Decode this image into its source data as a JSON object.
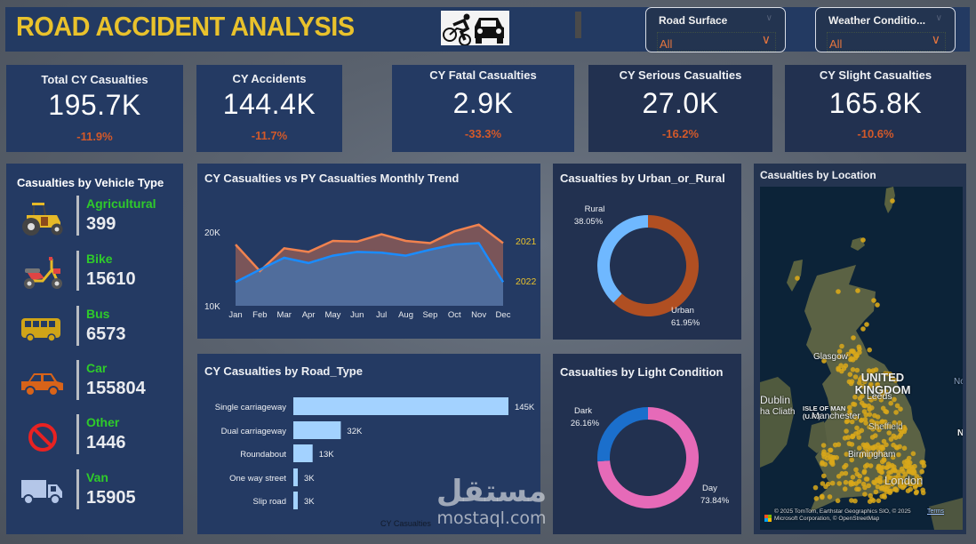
{
  "header": {
    "title": "ROAD ACCIDENT ANALYSIS",
    "logo_icon": "cyclist-car-collision-icon",
    "slicers": [
      {
        "label": "Road Surface",
        "value": "All"
      },
      {
        "label": "Weather Conditio...",
        "value": "All"
      }
    ]
  },
  "kpis": [
    {
      "title": "Total CY Casualties",
      "value": "195.7K",
      "delta": "-11.9%"
    },
    {
      "title": "CY Accidents",
      "value": "144.4K",
      "delta": "-11.7%"
    },
    {
      "title": "CY Fatal Casualties",
      "value": "2.9K",
      "delta": "-33.3%"
    },
    {
      "title": "CY Serious Casualties",
      "value": "27.0K",
      "delta": "-16.2%"
    },
    {
      "title": "CY Slight Casualties",
      "value": "165.8K",
      "delta": "-10.6%"
    }
  ],
  "vehicle": {
    "title": "Casualties by Vehicle Type",
    "items": [
      {
        "label": "Agricultural",
        "value": "399",
        "icon": "tractor-icon"
      },
      {
        "label": "Bike",
        "value": "15610",
        "icon": "motorbike-icon"
      },
      {
        "label": "Bus",
        "value": "6573",
        "icon": "bus-icon"
      },
      {
        "label": "Car",
        "value": "155804",
        "icon": "car-icon"
      },
      {
        "label": "Other",
        "value": "1446",
        "icon": "prohibited-icon"
      },
      {
        "label": "Van",
        "value": "15905",
        "icon": "van-icon"
      }
    ]
  },
  "colors": {
    "py_line": "#f0824f",
    "py_fill": "#7a5559",
    "cy_line": "#1a8cff",
    "cy_fill": "#506d9c",
    "urban": "#b04f22",
    "rural": "#6fb8ff",
    "day": "#e66ab8",
    "dark": "#1b6fcc",
    "bar": "#a3d2ff",
    "delta": "#d2592a",
    "title_yellow": "#e9c22c",
    "vehicle_label": "#2fcb2a"
  },
  "chart_data": [
    {
      "type": "area",
      "title": "CY Casualties vs PY Casualties Monthly Trend",
      "categories": [
        "Jan",
        "Feb",
        "Mar",
        "Apr",
        "May",
        "Jun",
        "Jul",
        "Aug",
        "Sep",
        "Oct",
        "Nov",
        "Dec"
      ],
      "series": [
        {
          "name": "2021",
          "values": [
            18300,
            14700,
            17800,
            17300,
            18800,
            18700,
            19700,
            18800,
            18500,
            20100,
            21000,
            18500
          ]
        },
        {
          "name": "2022",
          "values": [
            13200,
            14900,
            16500,
            15800,
            16800,
            17300,
            17200,
            16800,
            17600,
            18300,
            18500,
            13200
          ]
        }
      ],
      "yticks": [
        "10K",
        "20K"
      ],
      "ylim": [
        10000,
        20000
      ],
      "xlabel": "",
      "ylabel": "",
      "legend": "right-end-labels"
    },
    {
      "type": "bar",
      "orientation": "horizontal",
      "title": "CY Casualties by Road_Type",
      "categories": [
        "Single carriageway",
        "Dual carriageway",
        "Roundabout",
        "One way street",
        "Slip road"
      ],
      "values": [
        145000,
        32000,
        13000,
        3000,
        3000
      ],
      "data_labels": [
        "145K",
        "32K",
        "13K",
        "3K",
        "3K"
      ],
      "xlabel": "CY Casualties",
      "ylabel": ""
    },
    {
      "type": "pie",
      "donut": true,
      "title": "Casualties by Urban_or_Rural",
      "labels": [
        "Urban",
        "Rural"
      ],
      "values": [
        61.95,
        38.05
      ],
      "data_labels": [
        "61.95%",
        "38.05%"
      ]
    },
    {
      "type": "pie",
      "donut": true,
      "title": "Casualties by Light Condition",
      "labels": [
        "Day",
        "Dark"
      ],
      "values": [
        73.84,
        26.16
      ],
      "data_labels": [
        "73.84%",
        "26.16%"
      ]
    }
  ],
  "location": {
    "title": "Casualties by Location",
    "labels": {
      "glasgow": "Glasgow",
      "uk": "UNITED KINGDOM",
      "isle_of_man": "ISLE OF MAN (U.K.)",
      "dublin": "Dublin",
      "baile": "ha Cliath",
      "manchester": "Manchester",
      "leeds": "Leeds",
      "sheffield": "Sheffield",
      "birmingham": "Birmingham",
      "london": "London",
      "no": "No",
      "n": "N"
    },
    "attribution": "© 2025 TomTom, Earthstar Geographics SIO, © 2025 Microsoft Corporation, © OpenStreetMap",
    "terms": "Terms"
  },
  "watermark": {
    "arabic": "مستقل",
    "latin": "mostaql.com"
  }
}
